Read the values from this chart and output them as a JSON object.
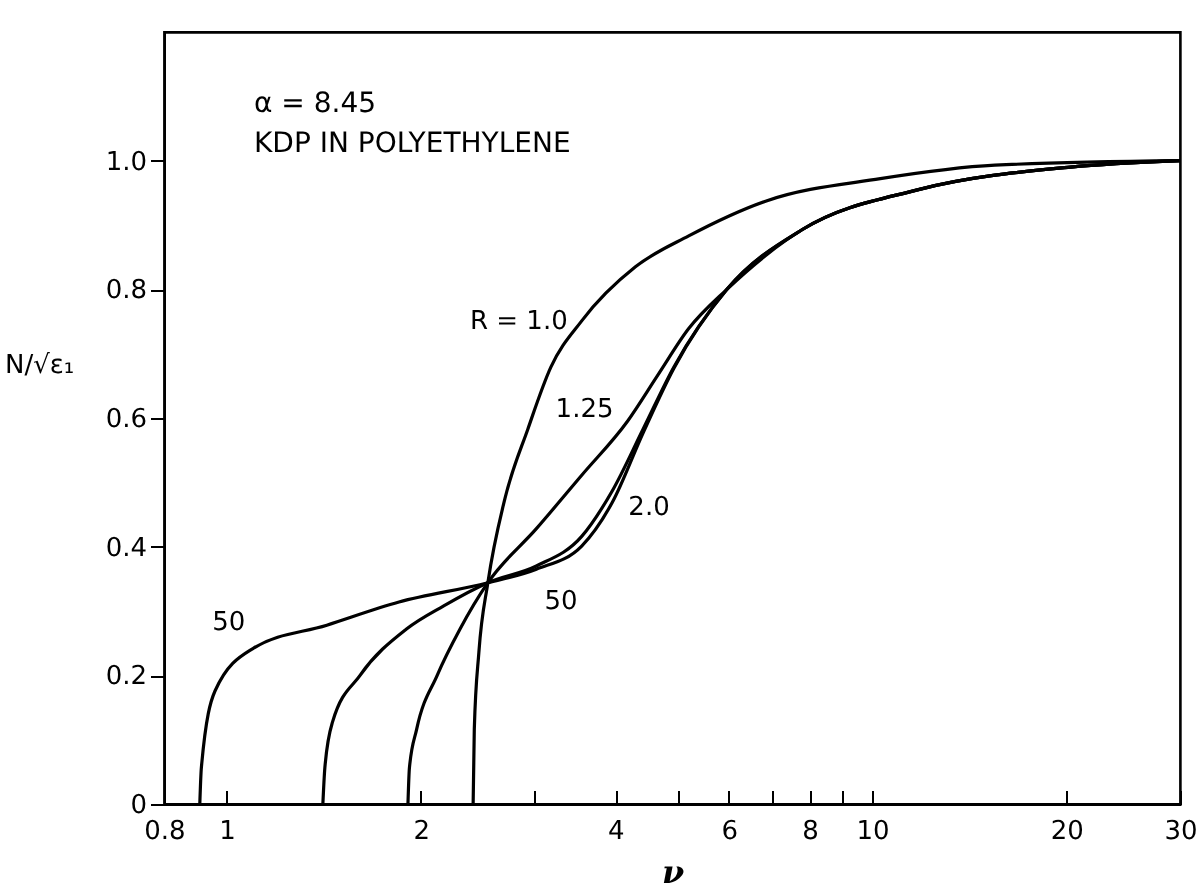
{
  "chart_data": {
    "type": "line",
    "xlabel": "ν",
    "ylabel": "N/√ε₁",
    "annotations": [
      "α = 8.45",
      "KDP IN POLYETHYLENE"
    ],
    "log": "x",
    "grid": false,
    "marker": "none",
    "line_style": "solid",
    "xlim": [
      0.8,
      30
    ],
    "xticks": [
      {
        "value": 0.8,
        "label": "0.8"
      },
      1,
      2,
      {
        "value": 3,
        "label": null
      },
      4,
      {
        "value": 5,
        "label": null
      },
      6,
      {
        "value": 7,
        "label": null
      },
      8,
      {
        "value": 9,
        "label": null
      },
      10,
      20,
      30
    ],
    "ylim": [
      0,
      1.2
    ],
    "yticks": [
      0,
      {
        "value": 0.2,
        "label": "0.2"
      },
      {
        "value": 0.4,
        "label": "0.4"
      },
      {
        "value": 0.6,
        "label": "0.6"
      },
      {
        "value": 0.8,
        "label": "0.8"
      },
      {
        "value": 1.0,
        "label": "1.0"
      }
    ],
    "series": [
      {
        "name": "R = 1.0",
        "color": "#000000",
        "x": [
          2.41,
          2.42,
          2.46,
          2.54,
          2.7,
          2.93,
          3.18,
          3.55,
          4.3,
          5.2,
          6.84,
          10.3,
          15.5,
          30
        ],
        "values": [
          0,
          0.116,
          0.236,
          0.344,
          0.475,
          0.583,
          0.679,
          0.751,
          0.835,
          0.883,
          0.937,
          0.972,
          0.993,
          1.0
        ]
      },
      {
        "name": "1.25",
        "color": "#000000",
        "x": [
          1.91,
          1.92,
          1.97,
          2.12,
          2.3,
          2.54,
          3.02,
          3.55,
          4.18,
          4.66,
          5.2,
          5.96,
          7.8,
          11.8,
          20.3,
          30
        ],
        "values": [
          0,
          0.056,
          0.116,
          0.2,
          0.272,
          0.344,
          0.428,
          0.511,
          0.595,
          0.667,
          0.739,
          0.8,
          0.893,
          0.955,
          0.99,
          1.0
        ]
      },
      {
        "name": "2.0",
        "color": "#000000",
        "x": [
          1.41,
          1.42,
          1.46,
          1.61,
          1.9,
          2.17,
          2.54,
          3.02,
          3.55,
          3.96,
          4.42,
          4.93,
          5.96,
          7.8,
          11.8,
          20.3,
          30
        ],
        "values": [
          0,
          0.056,
          0.128,
          0.2,
          0.272,
          0.308,
          0.344,
          0.37,
          0.416,
          0.487,
          0.583,
          0.679,
          0.8,
          0.893,
          0.955,
          0.99,
          1.0
        ]
      },
      {
        "name": "50",
        "color": "#000000",
        "x": [
          0.909,
          0.914,
          0.96,
          1.1,
          1.43,
          1.85,
          2.54,
          3.02,
          3.55,
          3.96,
          4.42,
          4.93,
          5.96,
          7.8,
          11.8,
          20.3,
          30
        ],
        "values": [
          0,
          0.056,
          0.176,
          0.242,
          0.278,
          0.314,
          0.344,
          0.365,
          0.401,
          0.469,
          0.577,
          0.677,
          0.8,
          0.893,
          0.955,
          0.99,
          1.0
        ]
      }
    ]
  }
}
